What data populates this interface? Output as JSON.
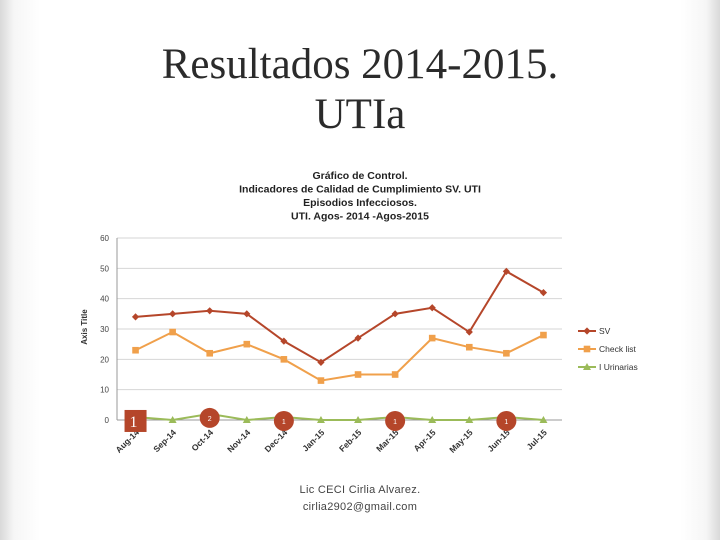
{
  "slide": {
    "title_line1": "Resultados 2014-2015.",
    "title_line2": "UTIa",
    "footer_line1": "Lic CECI Cirlia Alvarez.",
    "footer_line2": "cirlia2902@gmail.com"
  },
  "chart_data": {
    "type": "line",
    "title_lines": [
      "Gráfico de Control.",
      "Indicadores de Calidad de Cumplimiento SV. UTI",
      "Episodios Infecciosos.",
      "UTI. Agos- 2014 -Agos-2015"
    ],
    "ylabel": "Axis Title",
    "xlabel": "",
    "ylim": [
      0,
      60
    ],
    "yticks": [
      0,
      10,
      20,
      30,
      40,
      50,
      60
    ],
    "grid": true,
    "legend_position": "right",
    "categories": [
      "Aug-14",
      "Sep-14",
      "Oct-14",
      "Nov-14",
      "Dec-14",
      "Jan-15",
      "Feb-15",
      "Mar-15",
      "Apr-15",
      "May-15",
      "Jun-15",
      "Jul-15"
    ],
    "series": [
      {
        "name": "SV",
        "color": "#b5462a",
        "marker": "diamond",
        "values": [
          34,
          35,
          36,
          35,
          26,
          19,
          27,
          35,
          37,
          29,
          49,
          42
        ]
      },
      {
        "name": "Check list",
        "color": "#f0a04b",
        "marker": "square",
        "values": [
          23,
          29,
          22,
          25,
          20,
          13,
          15,
          15,
          27,
          24,
          22,
          28
        ]
      },
      {
        "name": "I Urinarias",
        "color": "#9bbb59",
        "marker": "triangle",
        "values": [
          1,
          0,
          2,
          0,
          1,
          0,
          0,
          1,
          0,
          0,
          1,
          0
        ]
      }
    ],
    "data_labels": [
      {
        "category": "Aug-14",
        "series": "I Urinarias",
        "text": "1",
        "style": "box"
      },
      {
        "category": "Oct-14",
        "series": "I Urinarias",
        "text": "2",
        "style": "circle"
      },
      {
        "category": "Dec-14",
        "series": "I Urinarias",
        "text": "1",
        "style": "circle"
      },
      {
        "category": "Mar-15",
        "series": "I Urinarias",
        "text": "1",
        "style": "circle"
      },
      {
        "category": "Jun-15",
        "series": "I Urinarias",
        "text": "1",
        "style": "circle"
      }
    ],
    "label_color": "#b5462a"
  }
}
